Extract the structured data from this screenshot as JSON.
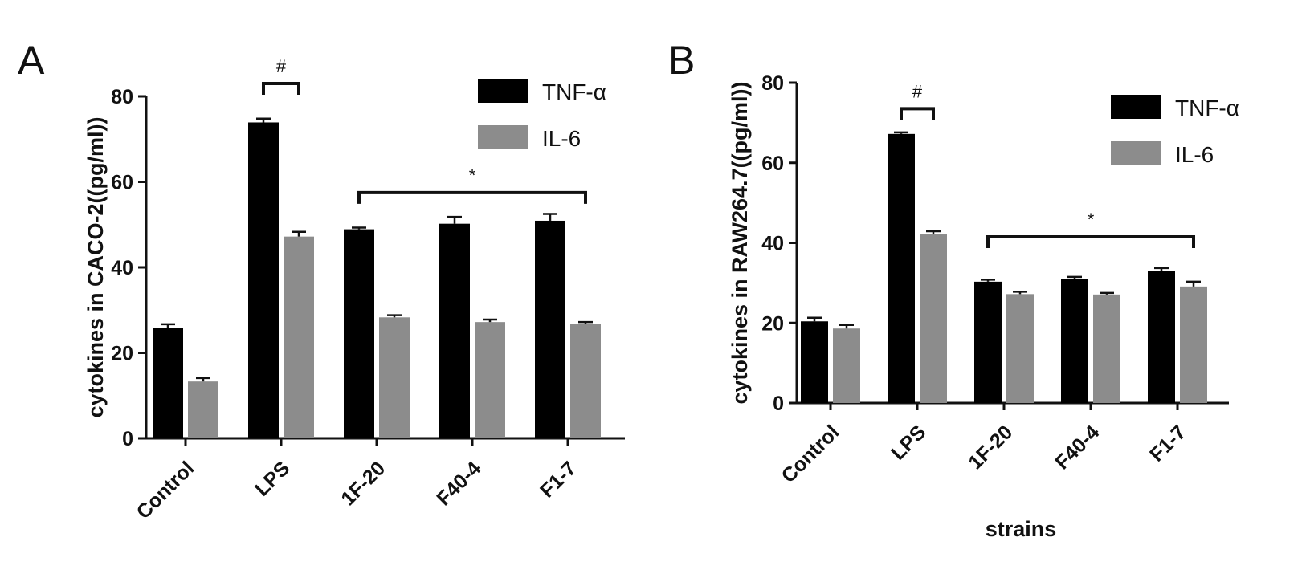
{
  "chart_data": [
    {
      "type": "bar",
      "panel": "A",
      "title": "",
      "xlabel": "",
      "ylabel": "cytokines  in CACO-2((pg/ml))",
      "ylim": [
        0,
        80
      ],
      "yticks": [
        0,
        20,
        40,
        60,
        80
      ],
      "categories": [
        "Control",
        "LPS",
        "1F-20",
        "F40-4",
        "F1-7"
      ],
      "series": [
        {
          "name": "TNF-α",
          "color": "#000000",
          "values": [
            25.8,
            73.9,
            48.9,
            50.2,
            50.9
          ],
          "errors": [
            0.9,
            0.9,
            0.4,
            1.6,
            1.6
          ]
        },
        {
          "name": "IL-6",
          "color": "#8c8c8c",
          "values": [
            13.3,
            47.2,
            28.3,
            27.2,
            26.8
          ],
          "errors": [
            0.8,
            1.1,
            0.5,
            0.6,
            0.4
          ]
        }
      ],
      "legend": "top-right",
      "grid": false,
      "annotations": [
        {
          "text": "#",
          "from": "LPS",
          "to": "LPS",
          "y": 83
        },
        {
          "text": "*",
          "from": "1F-20",
          "to": "F1-7",
          "y": 57.5
        }
      ]
    },
    {
      "type": "bar",
      "panel": "B",
      "title": "",
      "xlabel": "strains",
      "ylabel": "cytokines  in RAW264.7((pg/ml))",
      "ylim": [
        0,
        80
      ],
      "yticks": [
        0,
        20,
        40,
        60,
        80
      ],
      "categories": [
        "Control",
        "LPS",
        "1F-20",
        "F40-4",
        "F1-7"
      ],
      "series": [
        {
          "name": "TNF-α",
          "color": "#000000",
          "values": [
            20.4,
            67.2,
            30.3,
            31.0,
            32.9
          ],
          "errors": [
            0.9,
            0.4,
            0.5,
            0.5,
            0.8
          ]
        },
        {
          "name": "IL-6",
          "color": "#8c8c8c",
          "values": [
            18.6,
            42.1,
            27.2,
            27.1,
            29.1
          ],
          "errors": [
            0.9,
            0.8,
            0.6,
            0.4,
            1.2
          ]
        }
      ],
      "legend": "top-right",
      "grid": false,
      "annotations": [
        {
          "text": "#",
          "from": "LPS",
          "to": "LPS",
          "y": 73.5
        },
        {
          "text": "*",
          "from": "1F-20",
          "to": "F1-7",
          "y": 41.5
        }
      ]
    }
  ]
}
